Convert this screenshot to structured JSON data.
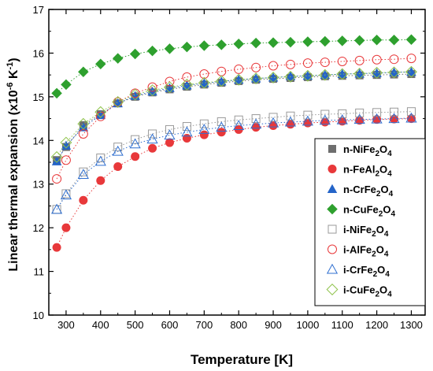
{
  "chart_data": {
    "type": "scatter",
    "xlabel": "Temperature [K]",
    "ylabel": "Linear thermal expansion (x10",
    "ylabel_sup": "-6",
    "ylabel_tail": " K",
    "ylabel_sup2": "-1",
    "ylabel_end": ")",
    "xlim": [
      250,
      1340
    ],
    "ylim": [
      10,
      17
    ],
    "xticks": [
      300,
      400,
      500,
      600,
      700,
      800,
      900,
      1000,
      1100,
      1200,
      1300
    ],
    "yticks": [
      10,
      11,
      12,
      13,
      14,
      15,
      16,
      17
    ],
    "x": [
      273,
      300,
      350,
      400,
      450,
      500,
      550,
      600,
      650,
      700,
      750,
      800,
      850,
      900,
      950,
      1000,
      1050,
      1100,
      1150,
      1200,
      1250,
      1300
    ],
    "legend_position": "bottom-right",
    "series": [
      {
        "name": "n-NiFe",
        "sub": "2",
        "mid": "O",
        "sub2": "4",
        "marker": "square",
        "filled": true,
        "color": "#6e6e6e",
        "values": [
          13.55,
          13.85,
          14.35,
          14.6,
          14.85,
          15.0,
          15.1,
          15.17,
          15.23,
          15.28,
          15.32,
          15.36,
          15.39,
          15.41,
          15.43,
          15.45,
          15.47,
          15.48,
          15.49,
          15.5,
          15.51,
          15.52
        ]
      },
      {
        "name": "n-FeAl",
        "sub": "2",
        "mid": "O",
        "sub2": "4",
        "marker": "circle",
        "filled": true,
        "color": "#e8383a",
        "values": [
          11.55,
          12.0,
          12.63,
          13.08,
          13.4,
          13.63,
          13.82,
          13.95,
          14.05,
          14.13,
          14.19,
          14.25,
          14.3,
          14.34,
          14.37,
          14.4,
          14.42,
          14.44,
          14.46,
          14.48,
          14.49,
          14.5
        ]
      },
      {
        "name": "n-CrFe",
        "sub": "2",
        "mid": "O",
        "sub2": "4",
        "marker": "triangle",
        "filled": true,
        "color": "#2464c8",
        "values": [
          13.52,
          13.88,
          14.3,
          14.58,
          14.85,
          15.02,
          15.12,
          15.2,
          15.26,
          15.31,
          15.35,
          15.39,
          15.42,
          15.44,
          15.47,
          15.48,
          15.5,
          15.52,
          15.53,
          15.54,
          15.56,
          15.57
        ]
      },
      {
        "name": "n-CuFe",
        "sub": "2",
        "mid": "O",
        "sub2": "4",
        "marker": "diamond",
        "filled": true,
        "color": "#2ea02e",
        "values": [
          15.08,
          15.28,
          15.57,
          15.75,
          15.88,
          15.98,
          16.05,
          16.1,
          16.14,
          16.17,
          16.19,
          16.21,
          16.23,
          16.24,
          16.25,
          16.26,
          16.27,
          16.28,
          16.29,
          16.3,
          16.3,
          16.31
        ]
      },
      {
        "name": "i-NiFe",
        "sub": "2",
        "mid": "O",
        "sub2": "4",
        "marker": "square",
        "filled": false,
        "color": "#9a9a9a",
        "values": [
          12.42,
          12.78,
          13.28,
          13.6,
          13.85,
          14.02,
          14.15,
          14.25,
          14.32,
          14.38,
          14.43,
          14.47,
          14.5,
          14.53,
          14.56,
          14.58,
          14.6,
          14.61,
          14.63,
          14.64,
          14.65,
          14.66
        ]
      },
      {
        "name": "i-AlFe",
        "sub": "2",
        "mid": "O",
        "sub2": "4",
        "marker": "circle",
        "filled": false,
        "color": "#e8383a",
        "values": [
          13.12,
          13.55,
          14.15,
          14.55,
          14.88,
          15.08,
          15.22,
          15.35,
          15.45,
          15.52,
          15.58,
          15.63,
          15.67,
          15.71,
          15.74,
          15.77,
          15.79,
          15.81,
          15.83,
          15.85,
          15.86,
          15.88
        ]
      },
      {
        "name": "i-CrFe",
        "sub": "2",
        "mid": "O",
        "sub2": "4",
        "marker": "triangle",
        "filled": false,
        "color": "#2f6fd0",
        "values": [
          12.42,
          12.75,
          13.22,
          13.52,
          13.75,
          13.92,
          14.03,
          14.12,
          14.19,
          14.25,
          14.3,
          14.34,
          14.37,
          14.4,
          14.42,
          14.44,
          14.46,
          14.47,
          14.48,
          14.49,
          14.5,
          14.51
        ]
      },
      {
        "name": "i-CuFe",
        "sub": "2",
        "mid": "O",
        "sub2": "4",
        "marker": "diamond",
        "filled": false,
        "color": "#8ec24a",
        "values": [
          13.62,
          13.95,
          14.38,
          14.65,
          14.88,
          15.05,
          15.15,
          15.22,
          15.28,
          15.32,
          15.36,
          15.39,
          15.42,
          15.44,
          15.46,
          15.48,
          15.5,
          15.52,
          15.53,
          15.55,
          15.56,
          15.57
        ]
      }
    ]
  }
}
